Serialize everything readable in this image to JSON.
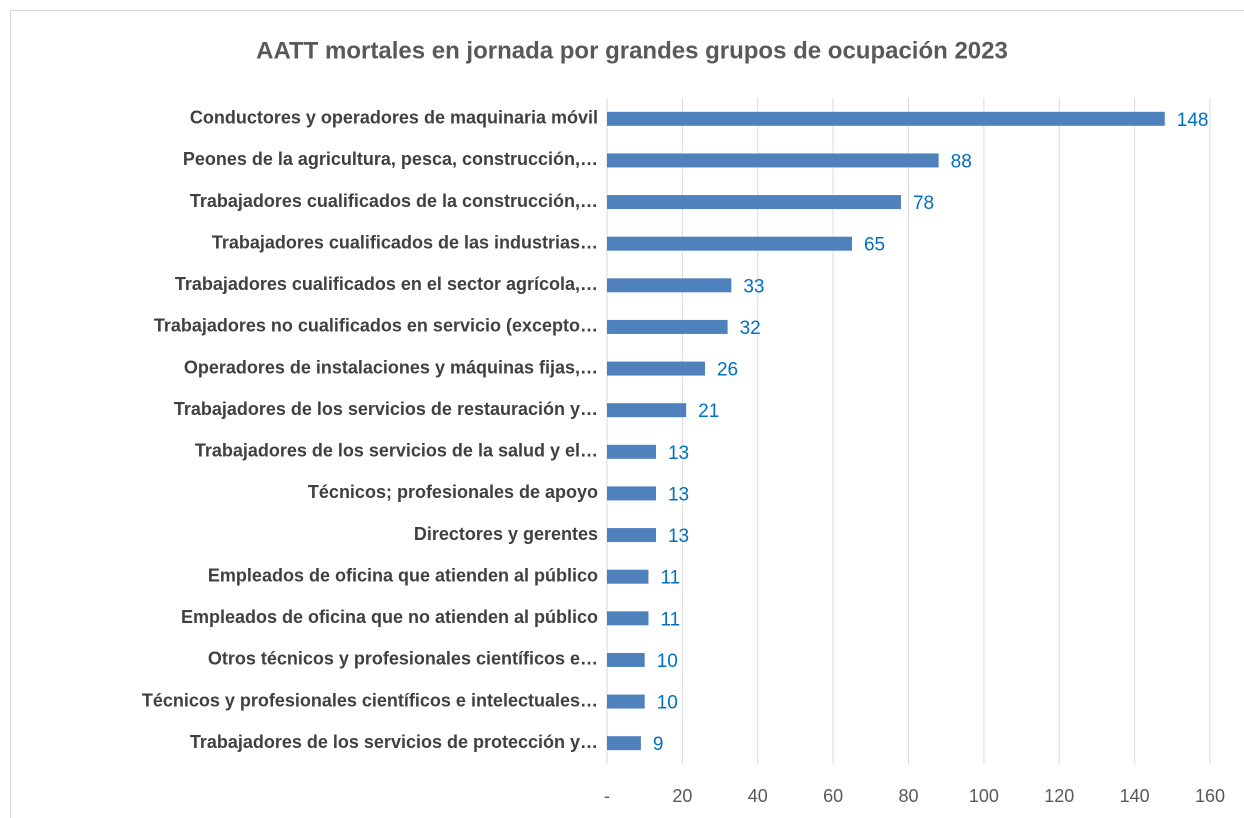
{
  "chart_data": {
    "type": "bar",
    "orientation": "horizontal",
    "title": "AATT mortales en jornada por grandes grupos de ocupación 2023",
    "categories": [
      "Conductores y operadores de maquinaria móvil",
      "Peones de la agricultura, pesca, construcción,…",
      "Trabajadores cualificados de la construcción,…",
      "Trabajadores cualificados de las industrias…",
      "Trabajadores cualificados en el sector agrícola,…",
      "Trabajadores no cualificados en servicio (excepto…",
      "Operadores de instalaciones y máquinas fijas,…",
      "Trabajadores de los servicios de restauración y…",
      "Trabajadores de los servicios de la salud y el…",
      "Técnicos; profesionales de apoyo",
      "Directores y gerentes",
      "Empleados de oficina que atienden al público",
      "Empleados de oficina que no atienden al público",
      "Otros técnicos y profesionales científicos e…",
      "Técnicos y profesionales científicos e intelectuales…",
      "Trabajadores de los servicios de protección y…"
    ],
    "values": [
      148,
      88,
      78,
      65,
      33,
      32,
      26,
      21,
      13,
      13,
      13,
      11,
      11,
      10,
      10,
      9
    ],
    "color": "#4f81bd",
    "label_color": "#0070c0",
    "xlim": [
      0,
      160
    ],
    "xticks": [
      {
        "value": 0,
        "label": "-"
      },
      20,
      40,
      60,
      80,
      100,
      120,
      140,
      160
    ],
    "grid": true
  }
}
